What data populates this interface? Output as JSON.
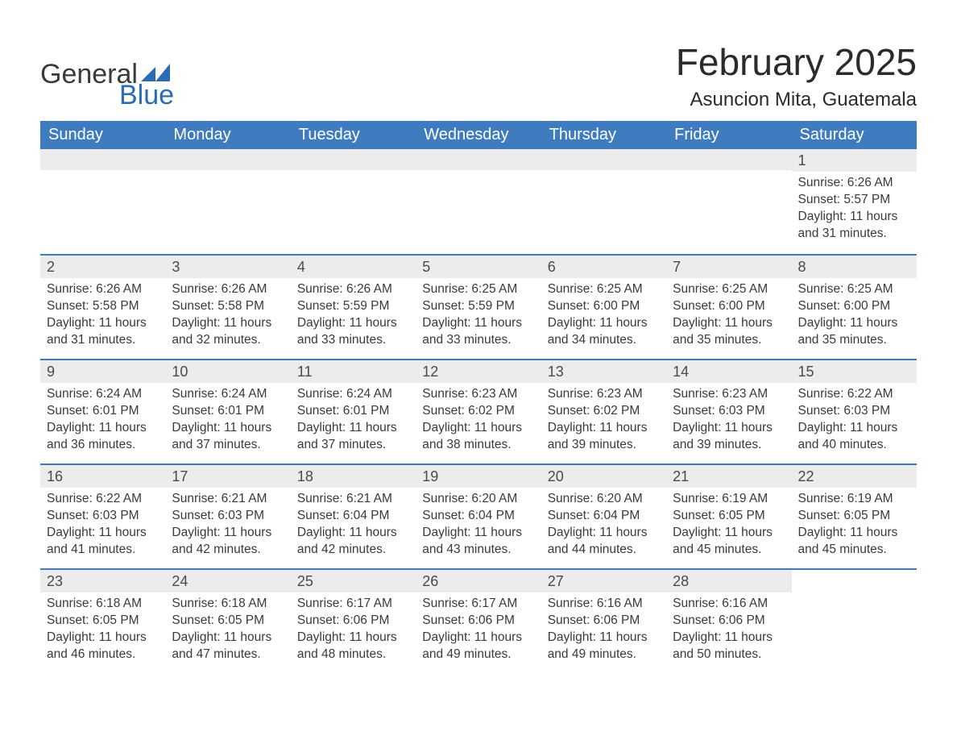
{
  "logo": {
    "word1": "General",
    "word2": "Blue",
    "icon_color": "#2a6db5"
  },
  "title": "February 2025",
  "location": "Asuncion Mita, Guatemala",
  "colors": {
    "header_bg": "#3f7cbf",
    "header_text": "#ffffff",
    "row_divider": "#3f7cbf",
    "daynum_bg": "#ececec",
    "text": "#3a3a3a",
    "logo_blue": "#2a6db5",
    "background": "#ffffff"
  },
  "typography": {
    "title_fontsize": 46,
    "location_fontsize": 24,
    "weekday_fontsize": 20,
    "daynum_fontsize": 18,
    "body_fontsize": 15.5,
    "font_family": "Arial"
  },
  "weekdays": [
    "Sunday",
    "Monday",
    "Tuesday",
    "Wednesday",
    "Thursday",
    "Friday",
    "Saturday"
  ],
  "weeks": [
    [
      {
        "empty": true
      },
      {
        "empty": true
      },
      {
        "empty": true
      },
      {
        "empty": true
      },
      {
        "empty": true
      },
      {
        "empty": true
      },
      {
        "day": "1",
        "sunrise": "Sunrise: 6:26 AM",
        "sunset": "Sunset: 5:57 PM",
        "daylight": "Daylight: 11 hours and 31 minutes."
      }
    ],
    [
      {
        "day": "2",
        "sunrise": "Sunrise: 6:26 AM",
        "sunset": "Sunset: 5:58 PM",
        "daylight": "Daylight: 11 hours and 31 minutes."
      },
      {
        "day": "3",
        "sunrise": "Sunrise: 6:26 AM",
        "sunset": "Sunset: 5:58 PM",
        "daylight": "Daylight: 11 hours and 32 minutes."
      },
      {
        "day": "4",
        "sunrise": "Sunrise: 6:26 AM",
        "sunset": "Sunset: 5:59 PM",
        "daylight": "Daylight: 11 hours and 33 minutes."
      },
      {
        "day": "5",
        "sunrise": "Sunrise: 6:25 AM",
        "sunset": "Sunset: 5:59 PM",
        "daylight": "Daylight: 11 hours and 33 minutes."
      },
      {
        "day": "6",
        "sunrise": "Sunrise: 6:25 AM",
        "sunset": "Sunset: 6:00 PM",
        "daylight": "Daylight: 11 hours and 34 minutes."
      },
      {
        "day": "7",
        "sunrise": "Sunrise: 6:25 AM",
        "sunset": "Sunset: 6:00 PM",
        "daylight": "Daylight: 11 hours and 35 minutes."
      },
      {
        "day": "8",
        "sunrise": "Sunrise: 6:25 AM",
        "sunset": "Sunset: 6:00 PM",
        "daylight": "Daylight: 11 hours and 35 minutes."
      }
    ],
    [
      {
        "day": "9",
        "sunrise": "Sunrise: 6:24 AM",
        "sunset": "Sunset: 6:01 PM",
        "daylight": "Daylight: 11 hours and 36 minutes."
      },
      {
        "day": "10",
        "sunrise": "Sunrise: 6:24 AM",
        "sunset": "Sunset: 6:01 PM",
        "daylight": "Daylight: 11 hours and 37 minutes."
      },
      {
        "day": "11",
        "sunrise": "Sunrise: 6:24 AM",
        "sunset": "Sunset: 6:01 PM",
        "daylight": "Daylight: 11 hours and 37 minutes."
      },
      {
        "day": "12",
        "sunrise": "Sunrise: 6:23 AM",
        "sunset": "Sunset: 6:02 PM",
        "daylight": "Daylight: 11 hours and 38 minutes."
      },
      {
        "day": "13",
        "sunrise": "Sunrise: 6:23 AM",
        "sunset": "Sunset: 6:02 PM",
        "daylight": "Daylight: 11 hours and 39 minutes."
      },
      {
        "day": "14",
        "sunrise": "Sunrise: 6:23 AM",
        "sunset": "Sunset: 6:03 PM",
        "daylight": "Daylight: 11 hours and 39 minutes."
      },
      {
        "day": "15",
        "sunrise": "Sunrise: 6:22 AM",
        "sunset": "Sunset: 6:03 PM",
        "daylight": "Daylight: 11 hours and 40 minutes."
      }
    ],
    [
      {
        "day": "16",
        "sunrise": "Sunrise: 6:22 AM",
        "sunset": "Sunset: 6:03 PM",
        "daylight": "Daylight: 11 hours and 41 minutes."
      },
      {
        "day": "17",
        "sunrise": "Sunrise: 6:21 AM",
        "sunset": "Sunset: 6:03 PM",
        "daylight": "Daylight: 11 hours and 42 minutes."
      },
      {
        "day": "18",
        "sunrise": "Sunrise: 6:21 AM",
        "sunset": "Sunset: 6:04 PM",
        "daylight": "Daylight: 11 hours and 42 minutes."
      },
      {
        "day": "19",
        "sunrise": "Sunrise: 6:20 AM",
        "sunset": "Sunset: 6:04 PM",
        "daylight": "Daylight: 11 hours and 43 minutes."
      },
      {
        "day": "20",
        "sunrise": "Sunrise: 6:20 AM",
        "sunset": "Sunset: 6:04 PM",
        "daylight": "Daylight: 11 hours and 44 minutes."
      },
      {
        "day": "21",
        "sunrise": "Sunrise: 6:19 AM",
        "sunset": "Sunset: 6:05 PM",
        "daylight": "Daylight: 11 hours and 45 minutes."
      },
      {
        "day": "22",
        "sunrise": "Sunrise: 6:19 AM",
        "sunset": "Sunset: 6:05 PM",
        "daylight": "Daylight: 11 hours and 45 minutes."
      }
    ],
    [
      {
        "day": "23",
        "sunrise": "Sunrise: 6:18 AM",
        "sunset": "Sunset: 6:05 PM",
        "daylight": "Daylight: 11 hours and 46 minutes."
      },
      {
        "day": "24",
        "sunrise": "Sunrise: 6:18 AM",
        "sunset": "Sunset: 6:05 PM",
        "daylight": "Daylight: 11 hours and 47 minutes."
      },
      {
        "day": "25",
        "sunrise": "Sunrise: 6:17 AM",
        "sunset": "Sunset: 6:06 PM",
        "daylight": "Daylight: 11 hours and 48 minutes."
      },
      {
        "day": "26",
        "sunrise": "Sunrise: 6:17 AM",
        "sunset": "Sunset: 6:06 PM",
        "daylight": "Daylight: 11 hours and 49 minutes."
      },
      {
        "day": "27",
        "sunrise": "Sunrise: 6:16 AM",
        "sunset": "Sunset: 6:06 PM",
        "daylight": "Daylight: 11 hours and 49 minutes."
      },
      {
        "day": "28",
        "sunrise": "Sunrise: 6:16 AM",
        "sunset": "Sunset: 6:06 PM",
        "daylight": "Daylight: 11 hours and 50 minutes."
      },
      {
        "empty": true,
        "plain": true
      }
    ]
  ]
}
